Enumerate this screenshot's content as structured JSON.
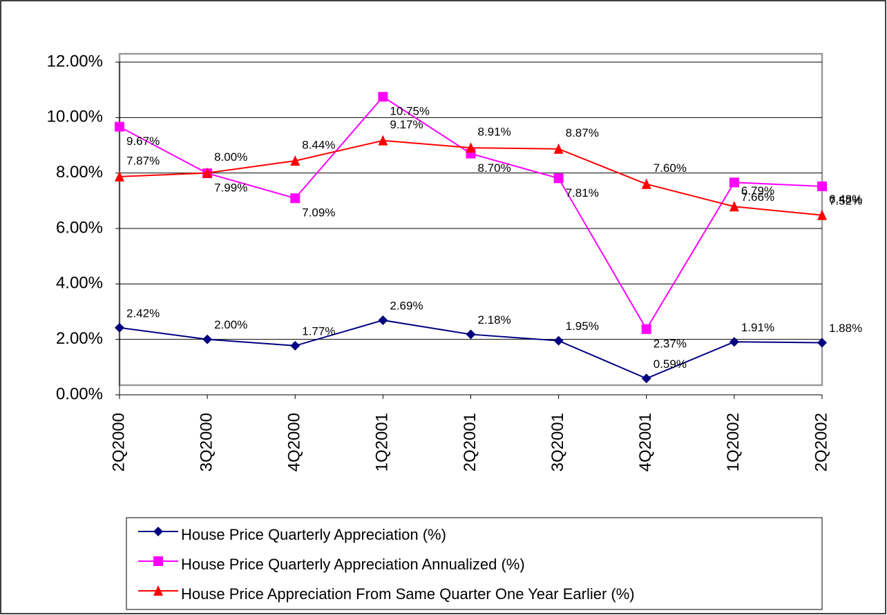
{
  "chart_data": {
    "type": "line",
    "categories": [
      "2Q2000",
      "3Q2000",
      "4Q2000",
      "1Q2001",
      "2Q2001",
      "3Q2001",
      "4Q2001",
      "1Q2002",
      "2Q2002"
    ],
    "ylim": [
      0,
      12
    ],
    "yticks": [
      {
        "value": 0,
        "label": "0.00%"
      },
      {
        "value": 2,
        "label": "2.00%"
      },
      {
        "value": 4,
        "label": "4.00%"
      },
      {
        "value": 6,
        "label": "6.00%"
      },
      {
        "value": 8,
        "label": "8.00%"
      },
      {
        "value": 10,
        "label": "10.00%"
      },
      {
        "value": 12,
        "label": "12.00%"
      }
    ],
    "grid": true,
    "series": [
      {
        "name": "House Price Quarterly Appreciation (%)",
        "color": "#000080",
        "marker": "diamond",
        "values": [
          2.42,
          2.0,
          1.77,
          2.69,
          2.18,
          1.95,
          0.59,
          1.91,
          1.88
        ],
        "value_labels": [
          "2.42%",
          "2.00%",
          "1.77%",
          "2.69%",
          "2.18%",
          "1.95%",
          "0.59%",
          "1.91%",
          "1.88%"
        ]
      },
      {
        "name": "House Price Quarterly Appreciation Annualized (%)",
        "color": "#ff00ff",
        "marker": "square",
        "values": [
          9.67,
          7.99,
          7.09,
          10.75,
          8.7,
          7.81,
          2.37,
          7.66,
          7.52
        ],
        "value_labels": [
          "9.67%",
          "7.99%",
          "7.09%",
          "10.75%",
          "8.70%",
          "7.81%",
          "2.37%",
          "7.66%",
          "7.52%"
        ]
      },
      {
        "name": "House Price Appreciation From Same Quarter One Year Earlier (%)",
        "color": "#ff0000",
        "marker": "triangle",
        "values": [
          7.87,
          8.0,
          8.44,
          9.17,
          8.91,
          8.87,
          7.6,
          6.79,
          6.48
        ],
        "value_labels": [
          "7.87%",
          "8.00%",
          "8.44%",
          "9.17%",
          "8.91%",
          "8.87%",
          "7.60%",
          "6.79%",
          "6.48%"
        ]
      }
    ]
  }
}
